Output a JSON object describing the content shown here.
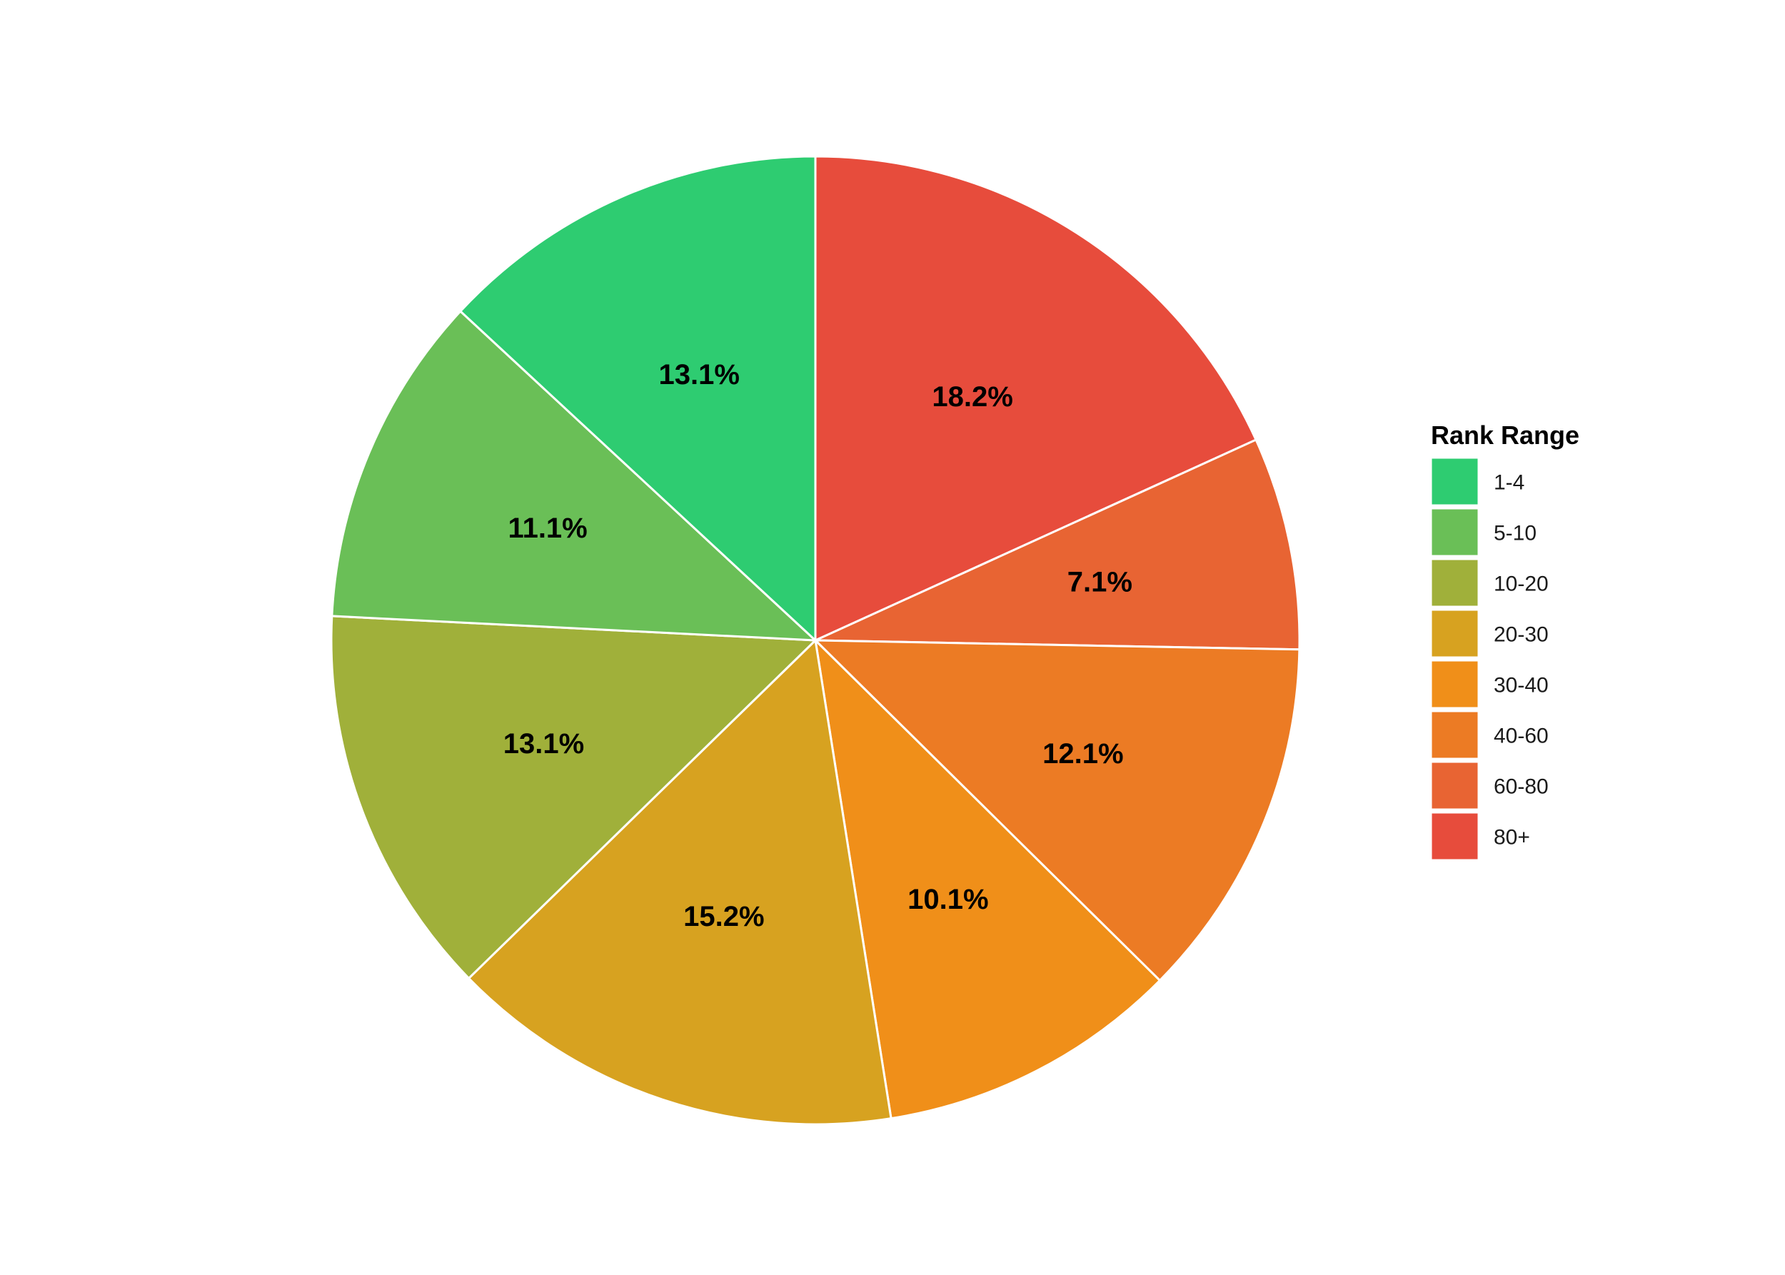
{
  "chart_data": {
    "type": "pie",
    "legend_title": "Rank Range",
    "legend_position": "right",
    "start": "top",
    "direction": "clockwise",
    "categories": [
      "1-4",
      "5-10",
      "10-20",
      "20-30",
      "30-40",
      "40-60",
      "60-80",
      "80+"
    ],
    "values": [
      13.1,
      11.1,
      13.1,
      15.2,
      10.1,
      12.1,
      7.1,
      18.2
    ],
    "labels": [
      "13.1%",
      "11.1%",
      "13.1%",
      "15.2%",
      "10.1%",
      "12.1%",
      "7.1%",
      "18.2%"
    ],
    "colors": [
      "#2ECC71",
      "#6ABF57",
      "#A0B03A",
      "#D7A220",
      "#F08F19",
      "#EC7B24",
      "#E86433",
      "#E74C3C"
    ],
    "draw_order": [
      "80+",
      "60-80",
      "40-60",
      "30-40",
      "20-30",
      "10-20",
      "5-10",
      "1-4"
    ]
  }
}
